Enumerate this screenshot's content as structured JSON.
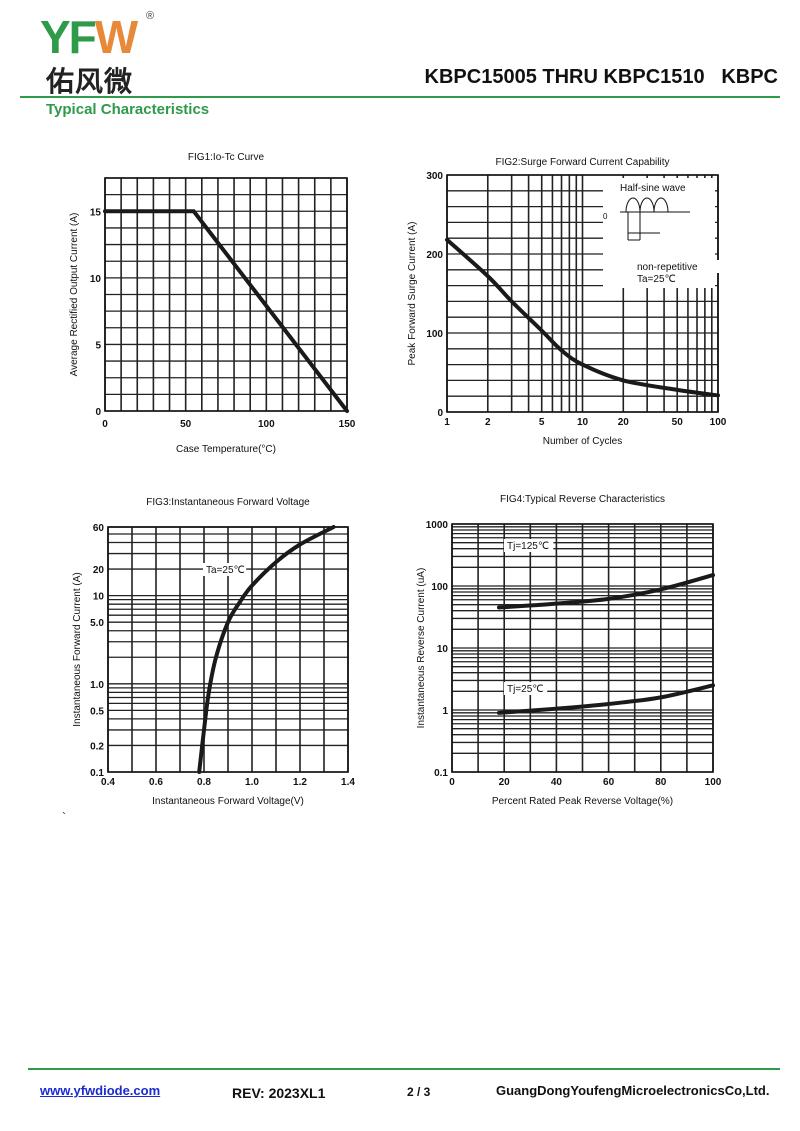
{
  "header": {
    "logo_text": "YFW",
    "logo_reg": "®",
    "logo_cn": "佑风微",
    "title": "KBPC15005 THRU KBPC1510   KBPC",
    "section": "Typical Characteristics"
  },
  "footer": {
    "url": "www.yfwdiode.com",
    "rev": "REV: 2023XL1",
    "page": "2 / 3",
    "company": "GuangDongYoufengMicroelectronicsCo,Ltd."
  },
  "stray_mark": "`",
  "chart_data": [
    {
      "type": "line",
      "title": "FIG1:Io-Tc Curve",
      "xlabel": "Case Temperature(°C)",
      "ylabel": "Average Rectified Output Current (A)",
      "xscale": "linear",
      "yscale": "linear",
      "xlim": [
        0,
        150
      ],
      "ylim": [
        0,
        17.5
      ],
      "xticks": [
        0,
        50,
        100,
        150
      ],
      "yticks": [
        0,
        5,
        10,
        15
      ],
      "grid": true,
      "series": [
        {
          "name": "Io",
          "points": [
            [
              0,
              15
            ],
            [
              55,
              15
            ],
            [
              150,
              0
            ]
          ]
        }
      ],
      "annotations": []
    },
    {
      "type": "line",
      "title": "FIG2:Surge Forward Current Capability",
      "xlabel": "Number of Cycles",
      "ylabel": "Peak Forward Surge Current (A)",
      "xscale": "log",
      "yscale": "linear",
      "xlim": [
        1,
        100
      ],
      "ylim": [
        0,
        300
      ],
      "xticks": [
        1,
        2,
        5,
        10,
        20,
        50,
        100
      ],
      "yticks": [
        0,
        100,
        200,
        300
      ],
      "grid": true,
      "series": [
        {
          "name": "IFSM",
          "points": [
            [
              1,
              218
            ],
            [
              2,
              172
            ],
            [
              3,
              140
            ],
            [
              5,
              103
            ],
            [
              7,
              78
            ],
            [
              10,
              60
            ],
            [
              20,
              40
            ],
            [
              50,
              28
            ],
            [
              100,
              21
            ]
          ]
        }
      ],
      "annotations": [
        "Half-sine wave",
        "0",
        "non-repetitive",
        "Ta=25℃"
      ]
    },
    {
      "type": "line",
      "title": "FIG3:Instantaneous Forward Voltage",
      "xlabel": "Instantaneous Forward Voltage(V)",
      "ylabel": "Instantaneous Forward Current (A)",
      "xscale": "linear",
      "yscale": "log",
      "xlim": [
        0.4,
        1.4
      ],
      "ylim": [
        0.1,
        60
      ],
      "xticks": [
        0.4,
        0.6,
        0.8,
        1.0,
        1.2,
        1.4
      ],
      "yticks": [
        0.1,
        0.2,
        0.5,
        1.0,
        5.0,
        10,
        20,
        60
      ],
      "ytick_labels": [
        "0.1",
        "0.2",
        "0.5",
        "1.0",
        "5.0",
        "10",
        "20",
        "60"
      ],
      "xtick_labels": [
        "0.4",
        "0.6",
        "0.8",
        "1.0",
        "1.2",
        "1.4"
      ],
      "grid": true,
      "series": [
        {
          "name": "Ta=25℃",
          "points": [
            [
              0.78,
              0.1
            ],
            [
              0.8,
              0.3
            ],
            [
              0.82,
              0.8
            ],
            [
              0.85,
              2
            ],
            [
              0.9,
              5
            ],
            [
              0.95,
              8.5
            ],
            [
              1.0,
              13
            ],
            [
              1.1,
              24
            ],
            [
              1.2,
              38
            ],
            [
              1.34,
              60
            ]
          ]
        }
      ],
      "annotations": [
        "Ta=25℃"
      ]
    },
    {
      "type": "line",
      "title": "FIG4:Typical Reverse Characteristics",
      "xlabel": "Percent Rated Peak Reverse Voltage(%)",
      "ylabel": "Instantaneous Reverse Current (uA)",
      "xscale": "linear",
      "yscale": "log",
      "xlim": [
        0,
        100
      ],
      "ylim": [
        0.1,
        1000
      ],
      "xticks": [
        0,
        20,
        40,
        60,
        80,
        100
      ],
      "yticks": [
        0.1,
        1,
        10,
        100,
        1000
      ],
      "grid": true,
      "series": [
        {
          "name": "Tj=125℃",
          "points": [
            [
              18,
              45
            ],
            [
              40,
              52
            ],
            [
              60,
              62
            ],
            [
              80,
              88
            ],
            [
              100,
              150
            ]
          ]
        },
        {
          "name": "Tj=25℃",
          "points": [
            [
              18,
              0.9
            ],
            [
              40,
              1.05
            ],
            [
              60,
              1.25
            ],
            [
              80,
              1.6
            ],
            [
              100,
              2.5
            ]
          ]
        }
      ],
      "annotations": [
        "Tj=125℃",
        "Tj=25℃"
      ]
    }
  ]
}
